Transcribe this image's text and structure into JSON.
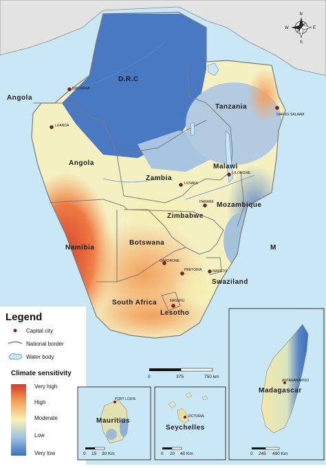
{
  "map": {
    "countries": {
      "drc": "D.R.C",
      "angola_north": "Angola",
      "angola": "Angola",
      "tanzania": "Tanzania",
      "malawi": "Malawi",
      "zambia": "Zambia",
      "mozambique": "Mozambique",
      "zimbabwe": "Zimbabwe",
      "namibia": "Namibia",
      "botswana": "Botswana",
      "swaziland": "Swaziland",
      "south_africa": "South Africa",
      "lesotho": "Lesotho"
    },
    "cities": {
      "kinshasa": "KINSHASA",
      "luanda": "LUANDA",
      "dar_es_salaam": "DAR ES SALAAM",
      "lilongwe": "LILONGWE",
      "lusaka": "LUSAKA",
      "harare": "HARARE",
      "gaborone": "GABORONE",
      "pretoria": "PRETORIA",
      "maputo": "MAPUTO",
      "maseru": "MASERU"
    },
    "stray_label": "M",
    "scale": {
      "t0": "0",
      "t1": "375",
      "t2": "750 km"
    }
  },
  "compass": {
    "n": "N",
    "s": "S",
    "e": "E",
    "w": "W"
  },
  "legend": {
    "title": "Legend",
    "capital": "Capital city",
    "border": "National border",
    "water": "Water body",
    "sensitivity_title": "Climate sensitivity",
    "levels": [
      "Very high",
      "High",
      "Moderate",
      "Low",
      "Very low"
    ],
    "colors": [
      "#e0452c",
      "#f5a35c",
      "#f6f2b8",
      "#9fc2de",
      "#3b6fc0"
    ]
  },
  "insets": {
    "mauritius": {
      "name": "Mauritius",
      "city": "PORT LOUIS",
      "t0": "0",
      "t1": "15",
      "t2": "30 Km"
    },
    "seychelles": {
      "name": "Seychelles",
      "city": "VICTORIA",
      "t0": "0",
      "t1": "20",
      "t2": "40 Km"
    },
    "madagascar": {
      "name": "Madagascar",
      "city": "ANTANANARIVO",
      "t0": "0",
      "t1": "245",
      "t2": "490 Km"
    }
  },
  "colors": {
    "sea": "#c9e7f5",
    "land_outside": "#e3e3e3",
    "border": "#7a7a7a",
    "capital": "#8a1a1a"
  }
}
